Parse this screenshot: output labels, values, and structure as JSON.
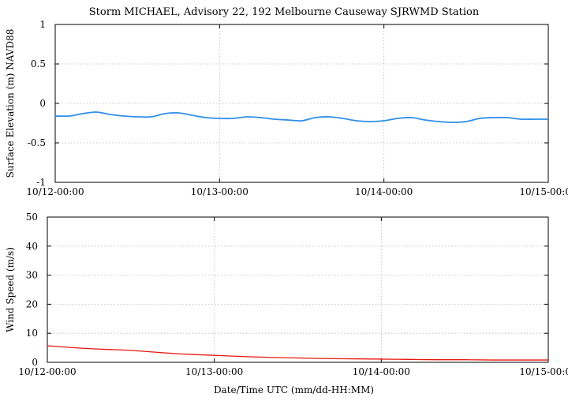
{
  "title": "Storm MICHAEL, Advisory 22,  192 Melbourne Causeway SJRWMD Station",
  "colors": {
    "elevation": "#2f8fe8",
    "wind": "#e8170f",
    "grid": "#b8b8b8"
  },
  "chart_data": [
    {
      "type": "line",
      "ylabel": "Surface Elevation (m) NAVD88",
      "xlabel": "",
      "ylim": [
        -1,
        1
      ],
      "yticks": [
        -1,
        -0.5,
        0,
        0.5,
        1
      ],
      "ytick_labels": [
        "-1",
        "-0.5",
        "0",
        "0.5",
        "1"
      ],
      "xlim": [
        0,
        72
      ],
      "xticks": [
        0,
        24,
        48,
        72
      ],
      "xtick_labels": [
        "10/12-00:00",
        "10/13-00:00",
        "10/14-00:00",
        "10/15-00:00"
      ],
      "grid": true,
      "x_unit": "hours from 10/12-00:00",
      "series": [
        {
          "color": "#2f8fe8",
          "x": [
            0,
            2,
            4,
            6,
            8,
            10,
            12,
            14,
            16,
            18,
            20,
            22,
            24,
            26,
            28,
            30,
            32,
            34,
            36,
            38,
            40,
            42,
            44,
            46,
            48,
            50,
            52,
            54,
            56,
            58,
            60,
            62,
            64,
            66,
            68,
            70,
            72
          ],
          "y": [
            -0.16,
            -0.16,
            -0.13,
            -0.11,
            -0.14,
            -0.16,
            -0.17,
            -0.17,
            -0.13,
            -0.12,
            -0.15,
            -0.18,
            -0.19,
            -0.19,
            -0.17,
            -0.18,
            -0.2,
            -0.21,
            -0.22,
            -0.18,
            -0.17,
            -0.19,
            -0.22,
            -0.23,
            -0.22,
            -0.19,
            -0.18,
            -0.21,
            -0.23,
            -0.24,
            -0.23,
            -0.19,
            -0.18,
            -0.18,
            -0.2,
            -0.2,
            -0.2
          ]
        }
      ]
    },
    {
      "type": "line",
      "ylabel": "Wind Speed (m/s)",
      "xlabel": "Date/Time UTC (mm/dd-HH:MM)",
      "ylim": [
        0,
        50
      ],
      "yticks": [
        0,
        10,
        20,
        30,
        40,
        50
      ],
      "ytick_labels": [
        "0",
        "10",
        "20",
        "30",
        "40",
        "50"
      ],
      "xlim": [
        0,
        72
      ],
      "xticks": [
        0,
        24,
        48,
        72
      ],
      "xtick_labels": [
        "10/12-00:00",
        "10/13-00:00",
        "10/14-00:00",
        "10/15-00:00"
      ],
      "grid": true,
      "x_unit": "hours from 10/12-00:00",
      "series": [
        {
          "color": "#e8170f",
          "x": [
            0,
            4,
            8,
            12,
            16,
            20,
            24,
            28,
            32,
            36,
            40,
            44,
            48,
            52,
            56,
            60,
            64,
            68,
            72
          ],
          "y": [
            5.7,
            5.0,
            4.5,
            4.1,
            3.4,
            2.8,
            2.4,
            2.0,
            1.7,
            1.5,
            1.3,
            1.2,
            1.1,
            1.0,
            0.9,
            0.9,
            0.8,
            0.8,
            0.8
          ]
        }
      ]
    }
  ]
}
